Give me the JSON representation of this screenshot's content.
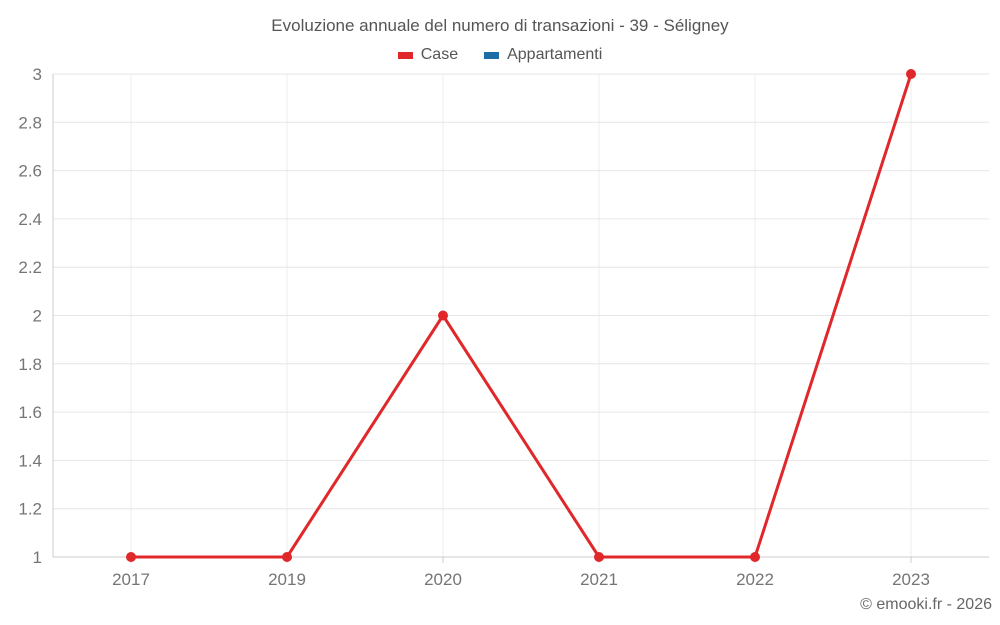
{
  "title": "Evoluzione annuale del numero di transazioni - 39 - Séligney",
  "copyright": "© emooki.fr - 2026",
  "legend": {
    "items": [
      {
        "label": "Case",
        "color": "#e0282b"
      },
      {
        "label": "Appartamenti",
        "color": "#1c6ea4"
      }
    ]
  },
  "colors": {
    "background": "#ffffff",
    "grid_h": "#e6e6e6",
    "grid_v": "#ececec",
    "axis": "#cccccc",
    "tick_label": "#757575",
    "title": "#555555",
    "copyright": "#666666",
    "series_case": "#e0282b",
    "series_appartamenti": "#1c6ea4"
  },
  "chart_data": {
    "type": "line",
    "title": "Evoluzione annuale del numero di transazioni - 39 - Séligney",
    "categories": [
      "2017",
      "2019",
      "2020",
      "2021",
      "2022",
      "2023"
    ],
    "series": [
      {
        "name": "Case",
        "color": "#e0282b",
        "values": [
          1,
          1,
          2,
          1,
          1,
          3
        ]
      },
      {
        "name": "Appartamenti",
        "color": "#1c6ea4",
        "values": [
          null,
          null,
          null,
          null,
          null,
          null
        ]
      }
    ],
    "xlabel": "",
    "ylabel": "",
    "ylim": [
      1,
      3
    ],
    "yticks": [
      1,
      1.2,
      1.4,
      1.6,
      1.8,
      2,
      2.2,
      2.4,
      2.6,
      2.8,
      3
    ],
    "grid": true,
    "legend_position": "top",
    "line_width": 3,
    "marker_radius": 5
  }
}
